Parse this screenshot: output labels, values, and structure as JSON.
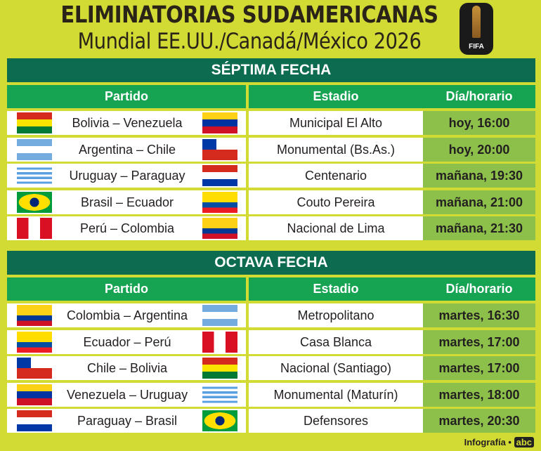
{
  "header": {
    "title": "ELIMINATORIAS SUDAMERICANAS",
    "subtitle": "Mundial  EE.UU./Canadá/México 2026",
    "logo_text": "FIFA"
  },
  "columns": {
    "match": "Partido",
    "stadium": "Estadio",
    "time": "Día/horario"
  },
  "sections": [
    {
      "title": "SÉPTIMA  FECHA",
      "rows": [
        {
          "home": "bolivia",
          "away": "venezuela",
          "match": "Bolivia – Venezuela",
          "stadium": "Municipal El Alto",
          "time": "hoy, 16:00"
        },
        {
          "home": "argentina",
          "away": "chile",
          "match": "Argentina – Chile",
          "stadium": "Monumental (Bs.As.)",
          "time": "hoy, 20:00"
        },
        {
          "home": "uruguay",
          "away": "paraguay",
          "match": "Uruguay – Paraguay",
          "stadium": "Centenario",
          "time": "mañana, 19:30"
        },
        {
          "home": "brasil",
          "away": "ecuador",
          "match": "Brasil – Ecuador",
          "stadium": "Couto Pereira",
          "time": "mañana, 21:00"
        },
        {
          "home": "peru",
          "away": "colombia",
          "match": "Perú – Colombia",
          "stadium": "Nacional de Lima",
          "time": "mañana, 21:30"
        }
      ]
    },
    {
      "title": "OCTAVA  FECHA",
      "rows": [
        {
          "home": "colombia",
          "away": "argentina",
          "match": "Colombia – Argentina",
          "stadium": "Metropolitano",
          "time": "martes, 16:30"
        },
        {
          "home": "ecuador",
          "away": "peru",
          "match": "Ecuador – Perú",
          "stadium": "Casa Blanca",
          "time": "martes, 17:00"
        },
        {
          "home": "chile",
          "away": "bolivia",
          "match": "Chile – Bolivia",
          "stadium": "Nacional (Santiago)",
          "time": "martes, 17:00"
        },
        {
          "home": "venezuela",
          "away": "uruguay",
          "match": "Venezuela – Uruguay",
          "stadium": "Monumental (Maturín)",
          "time": "martes, 18:00"
        },
        {
          "home": "paraguay",
          "away": "brasil",
          "match": "Paraguay – Brasil",
          "stadium": "Defensores",
          "time": "martes, 20:30"
        }
      ]
    }
  ],
  "footer": {
    "credit": "Infografía •",
    "brand": "abc"
  },
  "colors": {
    "background": "#d2da34",
    "band": "#0d6b4f",
    "subheader": "#16a352",
    "time_cell": "#8cc04a"
  }
}
